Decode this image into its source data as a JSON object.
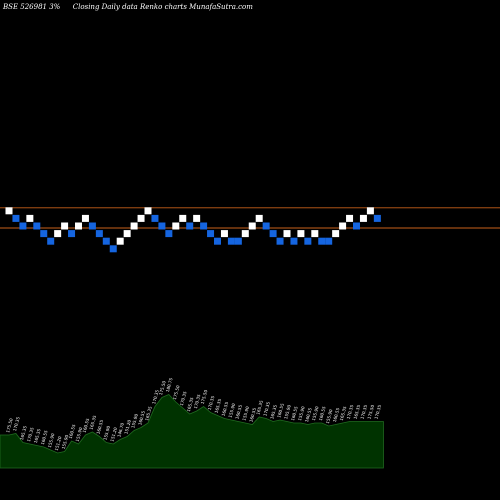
{
  "header": {
    "ticker": "BSE 526981 3%",
    "description": "Closing Daily data  Renko  charts MunafaSutra.com"
  },
  "colors": {
    "background": "#000000",
    "up_brick": "#ffffff",
    "down_brick": "#1565e0",
    "level_line": "#c8601a",
    "volume_fill": "#003300",
    "volume_outline": "#1f6b1f",
    "volume_label": "#ffffff"
  },
  "chart_data": {
    "type": "renko",
    "title": "BSE 526981 3%",
    "subtitle": "Closing Daily data  Renko  charts MunafaSutra.com",
    "brick_size_label": "3%",
    "reference_lines": [
      2,
      0
    ],
    "bricks": [
      {
        "dir": "up",
        "level": 2
      },
      {
        "dir": "down",
        "level": 1
      },
      {
        "dir": "down",
        "level": 0
      },
      {
        "dir": "up",
        "level": 1
      },
      {
        "dir": "down",
        "level": 0
      },
      {
        "dir": "down",
        "level": -1
      },
      {
        "dir": "down",
        "level": -2
      },
      {
        "dir": "up",
        "level": -1
      },
      {
        "dir": "up",
        "level": 0
      },
      {
        "dir": "down",
        "level": -1
      },
      {
        "dir": "up",
        "level": 0
      },
      {
        "dir": "up",
        "level": 1
      },
      {
        "dir": "down",
        "level": 0
      },
      {
        "dir": "down",
        "level": -1
      },
      {
        "dir": "down",
        "level": -2
      },
      {
        "dir": "down",
        "level": -3
      },
      {
        "dir": "up",
        "level": -2
      },
      {
        "dir": "up",
        "level": -1
      },
      {
        "dir": "up",
        "level": 0
      },
      {
        "dir": "up",
        "level": 1
      },
      {
        "dir": "up",
        "level": 2
      },
      {
        "dir": "down",
        "level": 1
      },
      {
        "dir": "down",
        "level": 0
      },
      {
        "dir": "down",
        "level": -1
      },
      {
        "dir": "up",
        "level": 0
      },
      {
        "dir": "up",
        "level": 1
      },
      {
        "dir": "down",
        "level": 0
      },
      {
        "dir": "up",
        "level": 1
      },
      {
        "dir": "down",
        "level": 0
      },
      {
        "dir": "down",
        "level": -1
      },
      {
        "dir": "down",
        "level": -2
      },
      {
        "dir": "up",
        "level": -1
      },
      {
        "dir": "down",
        "level": -2
      },
      {
        "dir": "down",
        "level": -2
      },
      {
        "dir": "up",
        "level": -1
      },
      {
        "dir": "up",
        "level": 0
      },
      {
        "dir": "up",
        "level": 1
      },
      {
        "dir": "down",
        "level": 0
      },
      {
        "dir": "down",
        "level": -1
      },
      {
        "dir": "down",
        "level": -2
      },
      {
        "dir": "up",
        "level": -1
      },
      {
        "dir": "down",
        "level": -2
      },
      {
        "dir": "up",
        "level": -1
      },
      {
        "dir": "down",
        "level": -2
      },
      {
        "dir": "up",
        "level": -1
      },
      {
        "dir": "down",
        "level": -2
      },
      {
        "dir": "down",
        "level": -2
      },
      {
        "dir": "up",
        "level": -1
      },
      {
        "dir": "up",
        "level": 0
      },
      {
        "dir": "up",
        "level": 1
      },
      {
        "dir": "down",
        "level": 0
      },
      {
        "dir": "up",
        "level": 1
      },
      {
        "dir": "up",
        "level": 2
      },
      {
        "dir": "down",
        "level": 1
      }
    ],
    "volume": [
      {
        "value": 22,
        "label": "175.50"
      },
      {
        "value": 23,
        "label": "170.35"
      },
      {
        "value": 17,
        "label": "165.35"
      },
      {
        "value": 16,
        "label": "170.35"
      },
      {
        "value": 15,
        "label": "165.35"
      },
      {
        "value": 14,
        "label": "160.55"
      },
      {
        "value": 12,
        "label": "155.90"
      },
      {
        "value": 10,
        "label": "151.20"
      },
      {
        "value": 11,
        "label": "155.90"
      },
      {
        "value": 18,
        "label": "160.55"
      },
      {
        "value": 16,
        "label": "155.90"
      },
      {
        "value": 22,
        "label": "160.55"
      },
      {
        "value": 24,
        "label": "165.35"
      },
      {
        "value": 21,
        "label": "160.55"
      },
      {
        "value": 17,
        "label": "155.90"
      },
      {
        "value": 16,
        "label": "151.20"
      },
      {
        "value": 19,
        "label": "146.70"
      },
      {
        "value": 21,
        "label": "151.20"
      },
      {
        "value": 25,
        "label": "155.90"
      },
      {
        "value": 27,
        "label": "160.55"
      },
      {
        "value": 30,
        "label": "165.35"
      },
      {
        "value": 41,
        "label": "170.35"
      },
      {
        "value": 47,
        "label": "175.50"
      },
      {
        "value": 49,
        "label": "180.75"
      },
      {
        "value": 44,
        "label": "175.50"
      },
      {
        "value": 40,
        "label": "170.35"
      },
      {
        "value": 36,
        "label": "165.35"
      },
      {
        "value": 38,
        "label": "170.35"
      },
      {
        "value": 41,
        "label": "175.50"
      },
      {
        "value": 37,
        "label": "170.35"
      },
      {
        "value": 35,
        "label": "165.35"
      },
      {
        "value": 33,
        "label": "160.55"
      },
      {
        "value": 32,
        "label": "155.90"
      },
      {
        "value": 31,
        "label": "160.55"
      },
      {
        "value": 30,
        "label": "155.90"
      },
      {
        "value": 29,
        "label": "160.55"
      },
      {
        "value": 34,
        "label": "165.35"
      },
      {
        "value": 33,
        "label": "170.35"
      },
      {
        "value": 31,
        "label": "165.35"
      },
      {
        "value": 32,
        "label": "160.55"
      },
      {
        "value": 31,
        "label": "155.90"
      },
      {
        "value": 30,
        "label": "160.55"
      },
      {
        "value": 30,
        "label": "155.90"
      },
      {
        "value": 29,
        "label": "160.55"
      },
      {
        "value": 30,
        "label": "155.90"
      },
      {
        "value": 30,
        "label": "160.55"
      },
      {
        "value": 28,
        "label": "155.90"
      },
      {
        "value": 29,
        "label": "160.55"
      },
      {
        "value": 30,
        "label": "165.35"
      },
      {
        "value": 31,
        "label": "170.35"
      },
      {
        "value": 31,
        "label": "165.35"
      },
      {
        "value": 31,
        "label": "170.35"
      },
      {
        "value": 31,
        "label": "175.50"
      },
      {
        "value": 31,
        "label": "170.35"
      }
    ],
    "volume_max": 50
  }
}
